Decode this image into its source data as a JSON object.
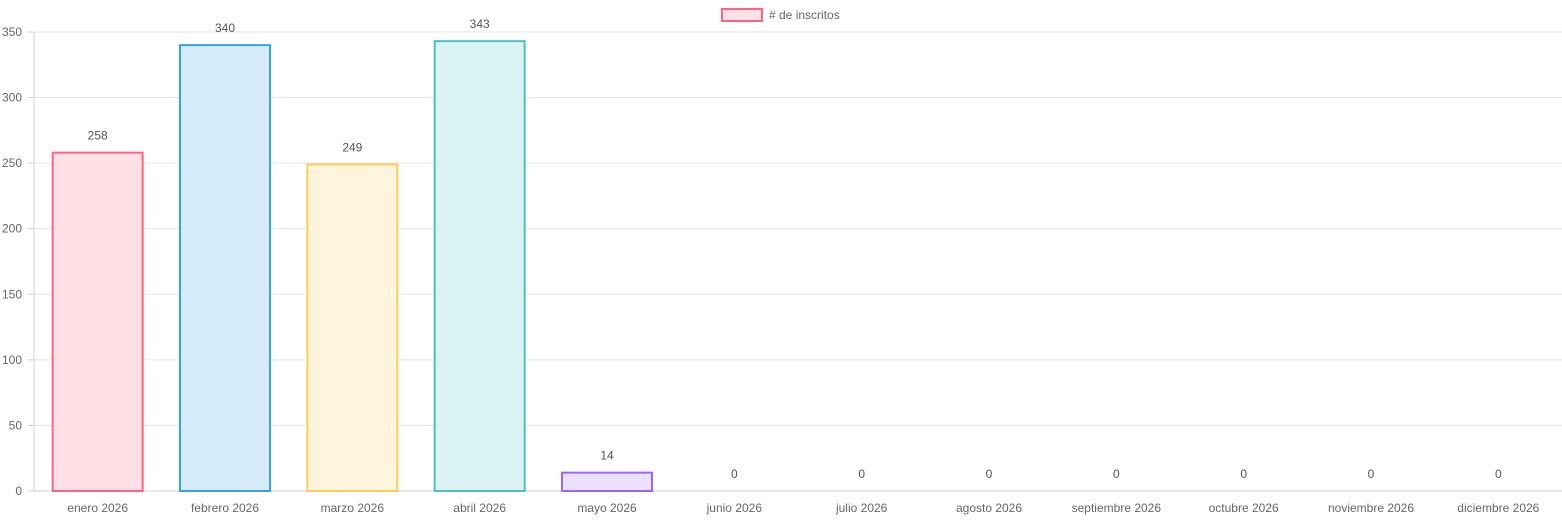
{
  "chart_data": {
    "type": "bar",
    "categories": [
      "enero 2026",
      "febrero 2026",
      "marzo 2026",
      "abril 2026",
      "mayo 2026",
      "junio 2026",
      "julio 2026",
      "agosto 2026",
      "septiembre 2026",
      "octubre 2026",
      "noviembre 2026",
      "diciembre 2026"
    ],
    "series": [
      {
        "name": "# de inscritos",
        "values": [
          258,
          340,
          249,
          343,
          14,
          0,
          0,
          0,
          0,
          0,
          0,
          0
        ],
        "data_labels": [
          "258",
          "340",
          "249",
          "343",
          "14",
          "0",
          "0",
          "0",
          "0",
          "0",
          "0",
          "0"
        ]
      }
    ],
    "ylim": [
      0,
      350
    ],
    "yticks": [
      "0",
      "50",
      "100",
      "150",
      "200",
      "250",
      "300",
      "350"
    ],
    "grid": true,
    "legend": "top-center",
    "colors": {
      "fills": [
        "#ffe0e6",
        "#d7ecfb",
        "#fff5dd",
        "#dbf2f2",
        "#ebe0ff",
        "#ffe0e6",
        "#d7ecfb",
        "#fff5dd",
        "#dbf2f2",
        "#ebe0ff",
        "#ffe0e6",
        "#d7ecfb"
      ],
      "borders": [
        "#ff6384",
        "#36a2eb",
        "#ffce56",
        "#4bc0c0",
        "#9966ff",
        "#ff6384",
        "#36a2eb",
        "#ffce56",
        "#4bc0c0",
        "#9966ff",
        "#ff6384",
        "#36a2eb"
      ],
      "legend_fill": "#ffe0e6",
      "legend_border": "#ff6384",
      "grid": "#e5e5e5",
      "axis": "#cfcfcf"
    }
  }
}
